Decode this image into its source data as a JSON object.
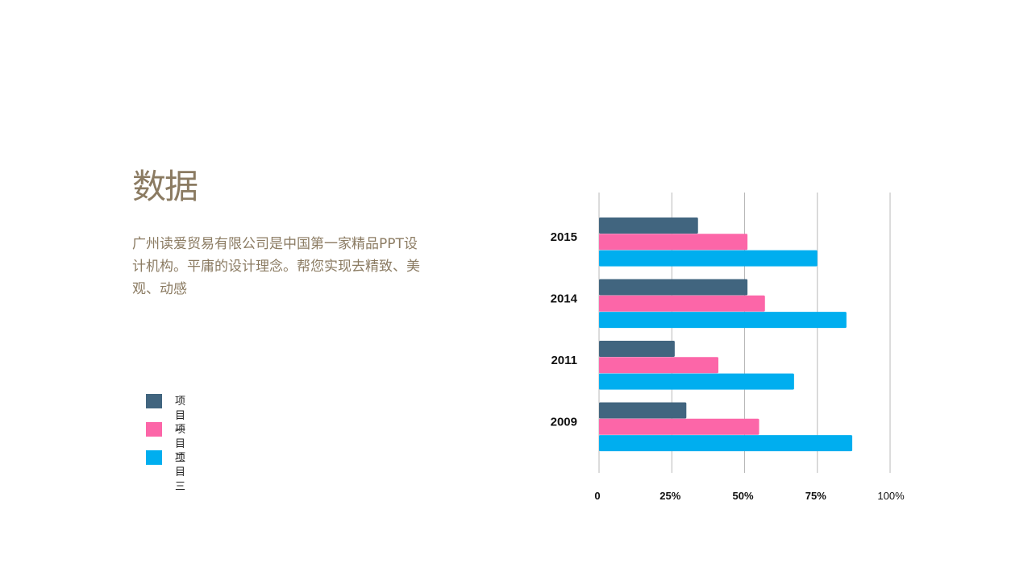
{
  "title": "数据",
  "description": "广州读爱贸易有限公司是中国第一家精品PPT设计机构。平庸的设计理念。帮您实现去精致、美观、动感",
  "colors": {
    "text_brown": "#8b7b62"
  },
  "chart_data": {
    "type": "bar",
    "orientation": "horizontal",
    "categories": [
      "2015",
      "2014",
      "2011",
      "2009"
    ],
    "series": [
      {
        "name": "项目一",
        "color": "#41657f",
        "values": [
          34,
          51,
          26,
          30
        ]
      },
      {
        "name": "项目二",
        "color": "#fc66a8",
        "values": [
          51,
          57,
          41,
          55
        ]
      },
      {
        "name": "项目三",
        "color": "#00aeef",
        "values": [
          75,
          85,
          67,
          87
        ]
      }
    ],
    "xlim": [
      0,
      100
    ],
    "xticks": [
      "0",
      "25%",
      "50%",
      "75%",
      "100%"
    ],
    "grid": "vertical",
    "legend_position": "left"
  }
}
